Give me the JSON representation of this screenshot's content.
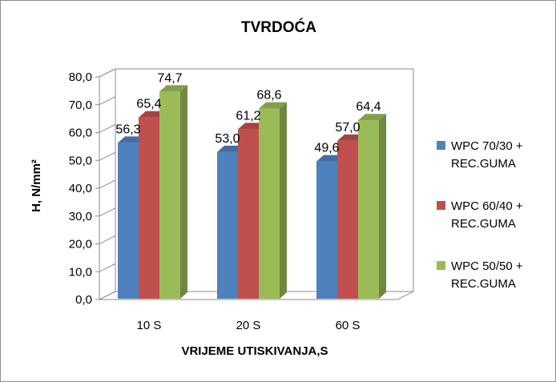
{
  "chart_data": {
    "type": "bar",
    "title": "TVRDOĆA",
    "xlabel": "VRIJEME UTISKIVANJA,S",
    "ylabel": "H, N/mm²",
    "categories": [
      "10 S",
      "20 S",
      "60 S"
    ],
    "ylim": [
      0,
      80
    ],
    "ytick_step": 10,
    "ytick_format": "one-decimal-comma",
    "grid": false,
    "three_d": true,
    "legend": "right",
    "series": [
      {
        "name_line1": "WPC 70/30 +",
        "name_line2": "REC.GUMA",
        "values": [
          56.3,
          53.0,
          49.6
        ],
        "labels": [
          "56,3",
          "53,0",
          "49,6"
        ],
        "color": "#4f81bd"
      },
      {
        "name_line1": "WPC 60/40 +",
        "name_line2": "REC.GUMA",
        "values": [
          65.4,
          61.2,
          57.0
        ],
        "labels": [
          "65,4",
          "61,2",
          "57,0"
        ],
        "color": "#c0504d"
      },
      {
        "name_line1": "WPC 50/50 +",
        "name_line2": "REC.GUMA",
        "values": [
          74.7,
          68.6,
          64.4
        ],
        "labels": [
          "74,7",
          "68,6",
          "64,4"
        ],
        "color": "#9bbb59"
      }
    ]
  }
}
